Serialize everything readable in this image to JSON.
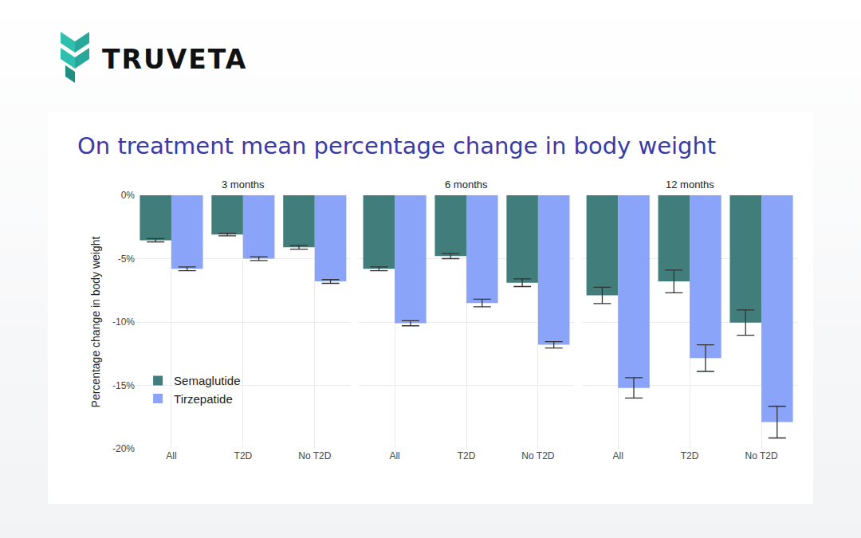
{
  "logo": "TRUVETA",
  "title": "On treatment mean percentage change in body weight",
  "chart_data": [
    {
      "type": "bar",
      "title": "3 months",
      "y_label": "Percentage change in body weight",
      "categories": [
        "All",
        "T2D",
        "No T2D"
      ],
      "series": [
        {
          "name": "Semaglutide",
          "color": "#417d7a",
          "values": [
            -3.55,
            -3.1,
            -4.1
          ],
          "error": [
            0.13,
            0.1,
            0.15
          ]
        },
        {
          "name": "Tirzepatide",
          "color": "#8aa4fa",
          "values": [
            -5.8,
            -5.0,
            -6.8
          ],
          "error": [
            0.15,
            0.15,
            0.15
          ]
        }
      ],
      "ylim": [
        -20,
        0
      ],
      "yticks": [
        {
          "value": 0,
          "label": "0%"
        },
        {
          "value": -5,
          "label": "-5%"
        },
        {
          "value": -10,
          "label": "-10%"
        },
        {
          "value": -15,
          "label": "-15%"
        },
        {
          "value": -20,
          "label": "-20%"
        }
      ],
      "grid": true,
      "legend": "bottom left"
    },
    {
      "type": "bar",
      "title": "6 months",
      "categories": [
        "All",
        "T2D",
        "No T2D"
      ],
      "series": [
        {
          "name": "Semaglutide",
          "color": "#417d7a",
          "values": [
            -5.8,
            -4.8,
            -6.9
          ],
          "error": [
            0.15,
            0.2,
            0.3
          ]
        },
        {
          "name": "Tirzepatide",
          "color": "#8aa4fa",
          "values": [
            -10.1,
            -8.5,
            -11.8
          ],
          "error": [
            0.2,
            0.3,
            0.25
          ]
        }
      ],
      "ylim": [
        -20,
        0
      ],
      "yticks": [
        {
          "value": 0,
          "label": "0%"
        },
        {
          "value": -5,
          "label": "-5%"
        },
        {
          "value": -10,
          "label": "-10%"
        },
        {
          "value": -15,
          "label": "-15%"
        },
        {
          "value": -20,
          "label": "-20%"
        }
      ],
      "grid": true,
      "tick_labels": "x"
    },
    {
      "type": "bar",
      "title": "12 months",
      "categories": [
        "All",
        "T2D",
        "No T2D"
      ],
      "series": [
        {
          "name": "Semaglutide",
          "color": "#417d7a",
          "values": [
            -7.9,
            -6.8,
            -10.05
          ],
          "error": [
            0.65,
            0.9,
            1.0
          ]
        },
        {
          "name": "Tirzepatide",
          "color": "#8aa4fa",
          "values": [
            -15.2,
            -12.85,
            -17.9
          ],
          "error": [
            0.8,
            1.05,
            1.25
          ]
        }
      ],
      "ylim": [
        -20,
        0
      ],
      "yticks": [
        {
          "value": 0,
          "label": "0%"
        },
        {
          "value": -5,
          "label": "-5%"
        },
        {
          "value": -10,
          "label": "-10%"
        },
        {
          "value": -15,
          "label": "-15%"
        },
        {
          "value": -20,
          "label": "-20%"
        }
      ],
      "grid": true,
      "tick_labels": "x"
    }
  ]
}
